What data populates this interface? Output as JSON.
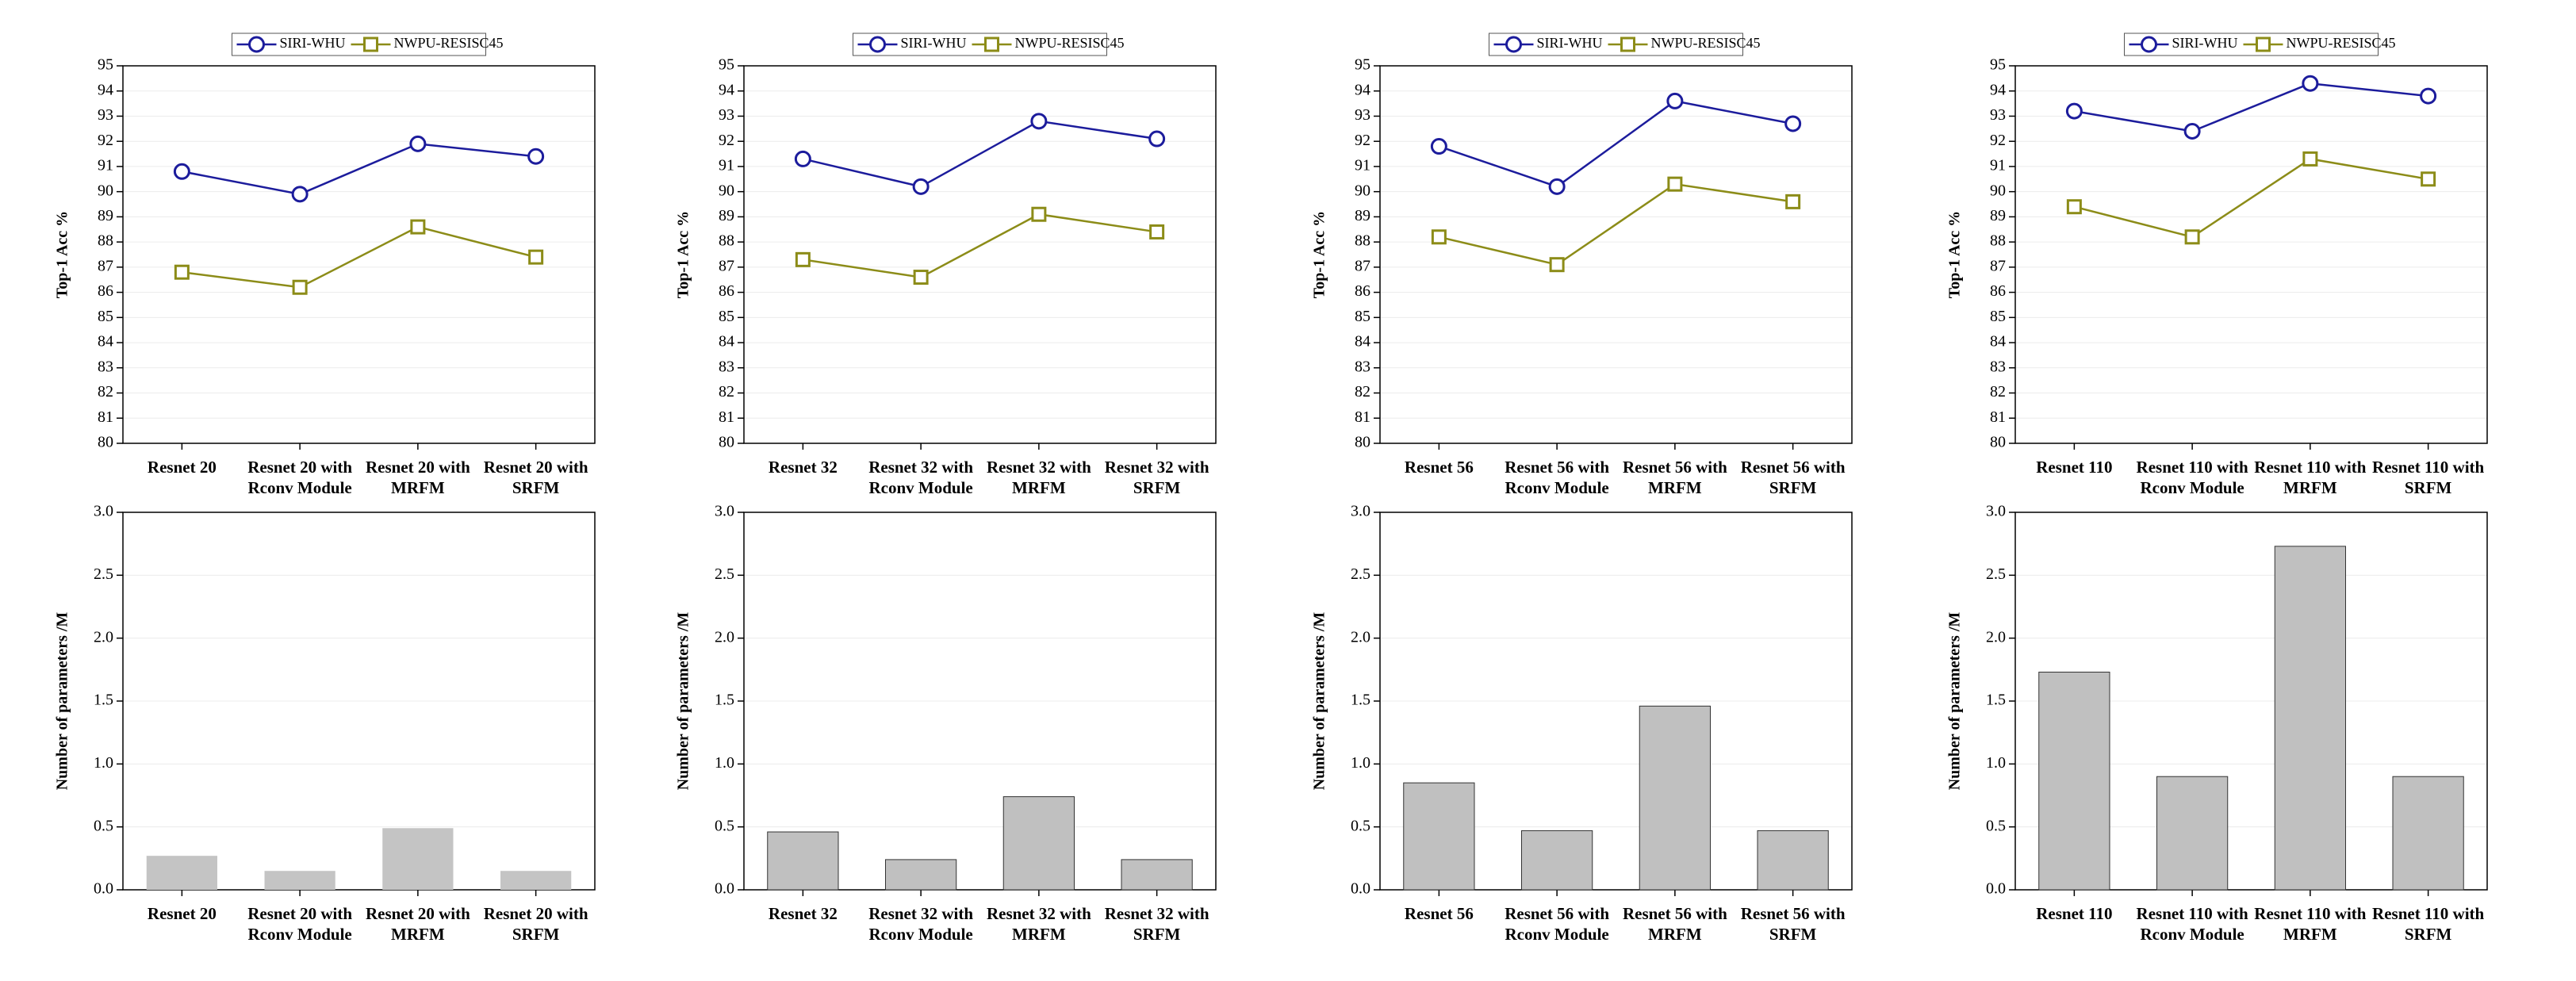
{
  "chart_data": [
    {
      "type": "line",
      "ylabel": "Top-1 Acc %",
      "categories": [
        "Resnet 20",
        "Resnet 20 with Rconv Module",
        "Resnet 20 with MRFM",
        "Resnet 20 with SRFM"
      ],
      "series": [
        {
          "name": "SIRI-WHU",
          "color": "#1c1c9c",
          "marker": "circle",
          "values": [
            90.8,
            89.9,
            91.9,
            91.4
          ]
        },
        {
          "name": "NWPU-RESISC45",
          "color": "#8c8c18",
          "marker": "square",
          "values": [
            86.8,
            86.2,
            88.6,
            87.4
          ]
        }
      ],
      "ylim": [
        80,
        95
      ],
      "yticks": [
        80,
        81,
        82,
        83,
        84,
        85,
        86,
        87,
        88,
        89,
        90,
        91,
        92,
        93,
        94,
        95
      ],
      "grid": true
    },
    {
      "type": "line",
      "ylabel": "Top-1 Acc %",
      "categories": [
        "Resnet 32",
        "Resnet 32 with Rconv Module",
        "Resnet 32 with MRFM",
        "Resnet 32 with SRFM"
      ],
      "series": [
        {
          "name": "SIRI-WHU",
          "color": "#1c1c9c",
          "marker": "circle",
          "values": [
            91.3,
            90.2,
            92.8,
            92.1
          ]
        },
        {
          "name": "NWPU-RESISC45",
          "color": "#8c8c18",
          "marker": "square",
          "values": [
            87.3,
            86.6,
            89.1,
            88.4
          ]
        }
      ],
      "ylim": [
        80,
        95
      ],
      "yticks": [
        80,
        81,
        82,
        83,
        84,
        85,
        86,
        87,
        88,
        89,
        90,
        91,
        92,
        93,
        94,
        95
      ],
      "grid": true
    },
    {
      "type": "line",
      "ylabel": "Top-1 Acc %",
      "categories": [
        "Resnet 56",
        "Resnet 56 with Rconv Module",
        "Resnet 56 with MRFM",
        "Resnet 56 with SRFM"
      ],
      "series": [
        {
          "name": "SIRI-WHU",
          "color": "#1c1c9c",
          "marker": "circle",
          "values": [
            91.8,
            90.2,
            93.6,
            92.7
          ]
        },
        {
          "name": "NWPU-RESISC45",
          "color": "#8c8c18",
          "marker": "square",
          "values": [
            88.2,
            87.1,
            90.3,
            89.6
          ]
        }
      ],
      "ylim": [
        80,
        95
      ],
      "yticks": [
        80,
        81,
        82,
        83,
        84,
        85,
        86,
        87,
        88,
        89,
        90,
        91,
        92,
        93,
        94,
        95
      ],
      "grid": true
    },
    {
      "type": "line",
      "ylabel": "Top-1 Acc %",
      "categories": [
        "Resnet 110",
        "Resnet 110 with Rconv Module",
        "Resnet 110 with MRFM",
        "Resnet 110 with SRFM"
      ],
      "series": [
        {
          "name": "SIRI-WHU",
          "color": "#1c1c9c",
          "marker": "circle",
          "values": [
            93.2,
            92.4,
            94.3,
            93.8
          ]
        },
        {
          "name": "NWPU-RESISC45",
          "color": "#8c8c18",
          "marker": "square",
          "values": [
            89.4,
            88.2,
            91.3,
            90.5
          ]
        }
      ],
      "ylim": [
        80,
        95
      ],
      "yticks": [
        80,
        81,
        82,
        83,
        84,
        85,
        86,
        87,
        88,
        89,
        90,
        91,
        92,
        93,
        94,
        95
      ],
      "grid": true
    },
    {
      "type": "bar",
      "ylabel": "Number of parameters /M",
      "categories": [
        "Resnet 20",
        "Resnet 20 with Rconv Module",
        "Resnet 20 with MRFM",
        "Resnet 20 with SRFM"
      ],
      "values": [
        0.27,
        0.15,
        0.49,
        0.15
      ],
      "color": "#c4c4c4",
      "ylim": [
        0,
        3
      ],
      "yticks": [
        {
          "value": 0,
          "label": "0.0"
        },
        0.5,
        {
          "value": 1,
          "label": "1.0"
        },
        1.5,
        {
          "value": 2,
          "label": "2.0"
        },
        2.5,
        {
          "value": 3,
          "label": "3.0"
        }
      ],
      "grid": true
    },
    {
      "type": "bar",
      "ylabel": "Number of parameters /M",
      "categories": [
        "Resnet 32",
        "Resnet 32 with Rconv Module",
        "Resnet 32 with MRFM",
        "Resnet 32 with SRFM"
      ],
      "values": [
        0.46,
        0.24,
        0.74,
        0.24
      ],
      "color": "#c0c0c0",
      "ylim": [
        0,
        3
      ],
      "yticks": [
        {
          "value": 0,
          "label": "0.0"
        },
        0.5,
        {
          "value": 1,
          "label": "1.0"
        },
        1.5,
        {
          "value": 2,
          "label": "2.0"
        },
        2.5,
        {
          "value": 3,
          "label": "3.0"
        }
      ],
      "grid": true
    },
    {
      "type": "bar",
      "ylabel": "Number of parameters /M",
      "categories": [
        "Resnet 56",
        "Resnet 56 with Rconv Module",
        "Resnet 56 with MRFM",
        "Resnet 56 with SRFM"
      ],
      "values": [
        0.85,
        0.47,
        1.46,
        0.47
      ],
      "color": "#c0c0c0",
      "ylim": [
        0,
        3
      ],
      "yticks": [
        {
          "value": 0,
          "label": "0.0"
        },
        0.5,
        {
          "value": 1,
          "label": "1.0"
        },
        1.5,
        {
          "value": 2,
          "label": "2.0"
        },
        2.5,
        {
          "value": 3,
          "label": "3.0"
        }
      ],
      "grid": true
    },
    {
      "type": "bar",
      "ylabel": "Number of parameters /M",
      "categories": [
        "Resnet 110",
        "Resnet 110 with Rconv Module",
        "Resnet 110 with MRFM",
        "Resnet 110 with SRFM"
      ],
      "values": [
        1.73,
        0.9,
        2.73,
        0.9
      ],
      "color": "#c0c0c0",
      "ylim": [
        0,
        3
      ],
      "yticks": [
        {
          "value": 0,
          "label": "0.0"
        },
        0.5,
        {
          "value": 1,
          "label": "1.0"
        },
        1.5,
        {
          "value": 2,
          "label": "2.0"
        },
        2.5,
        {
          "value": 3,
          "label": "3.0"
        }
      ],
      "grid": true
    }
  ]
}
